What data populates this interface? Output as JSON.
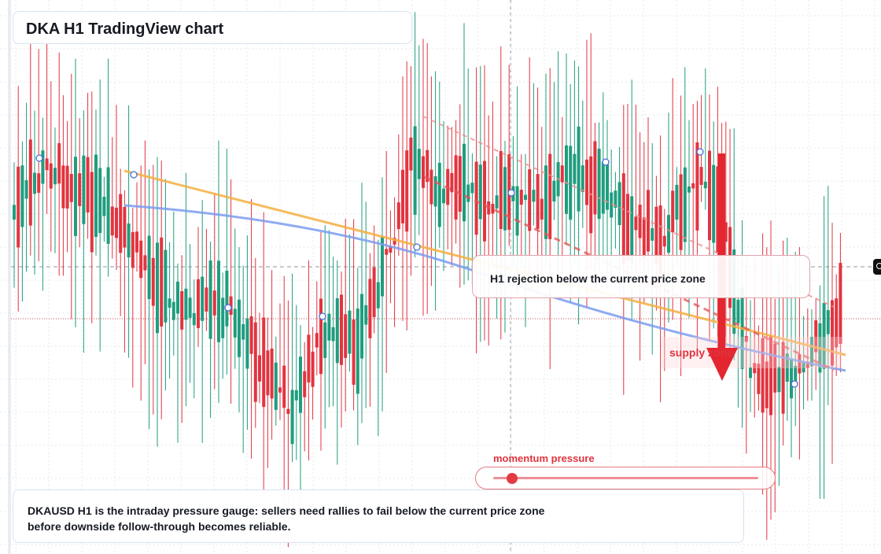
{
  "window": {
    "title": "DKA H1 TradingView chart"
  },
  "annotation": {
    "text": "H1 rejection below the current price zone"
  },
  "zone": {
    "label": "supply zone"
  },
  "gauge": {
    "label": "momentum pressure",
    "level": 0.07
  },
  "note": {
    "text": "DKAUSD H1 is the intraday pressure gauge: sellers need rallies to fail below the current price zone before downside follow-through becomes reliable."
  },
  "icons": {
    "price_marker": "price-tag-icon",
    "bias_arrow": "down-arrow-icon",
    "pivot_markers": "pivot-circle-icon"
  },
  "colors": {
    "bull": "#1f9d7e",
    "bear": "#e2343f",
    "trend_orange": "#f5b041",
    "trend_blue": "#7b9cf0",
    "accent": "#e0343f"
  }
}
